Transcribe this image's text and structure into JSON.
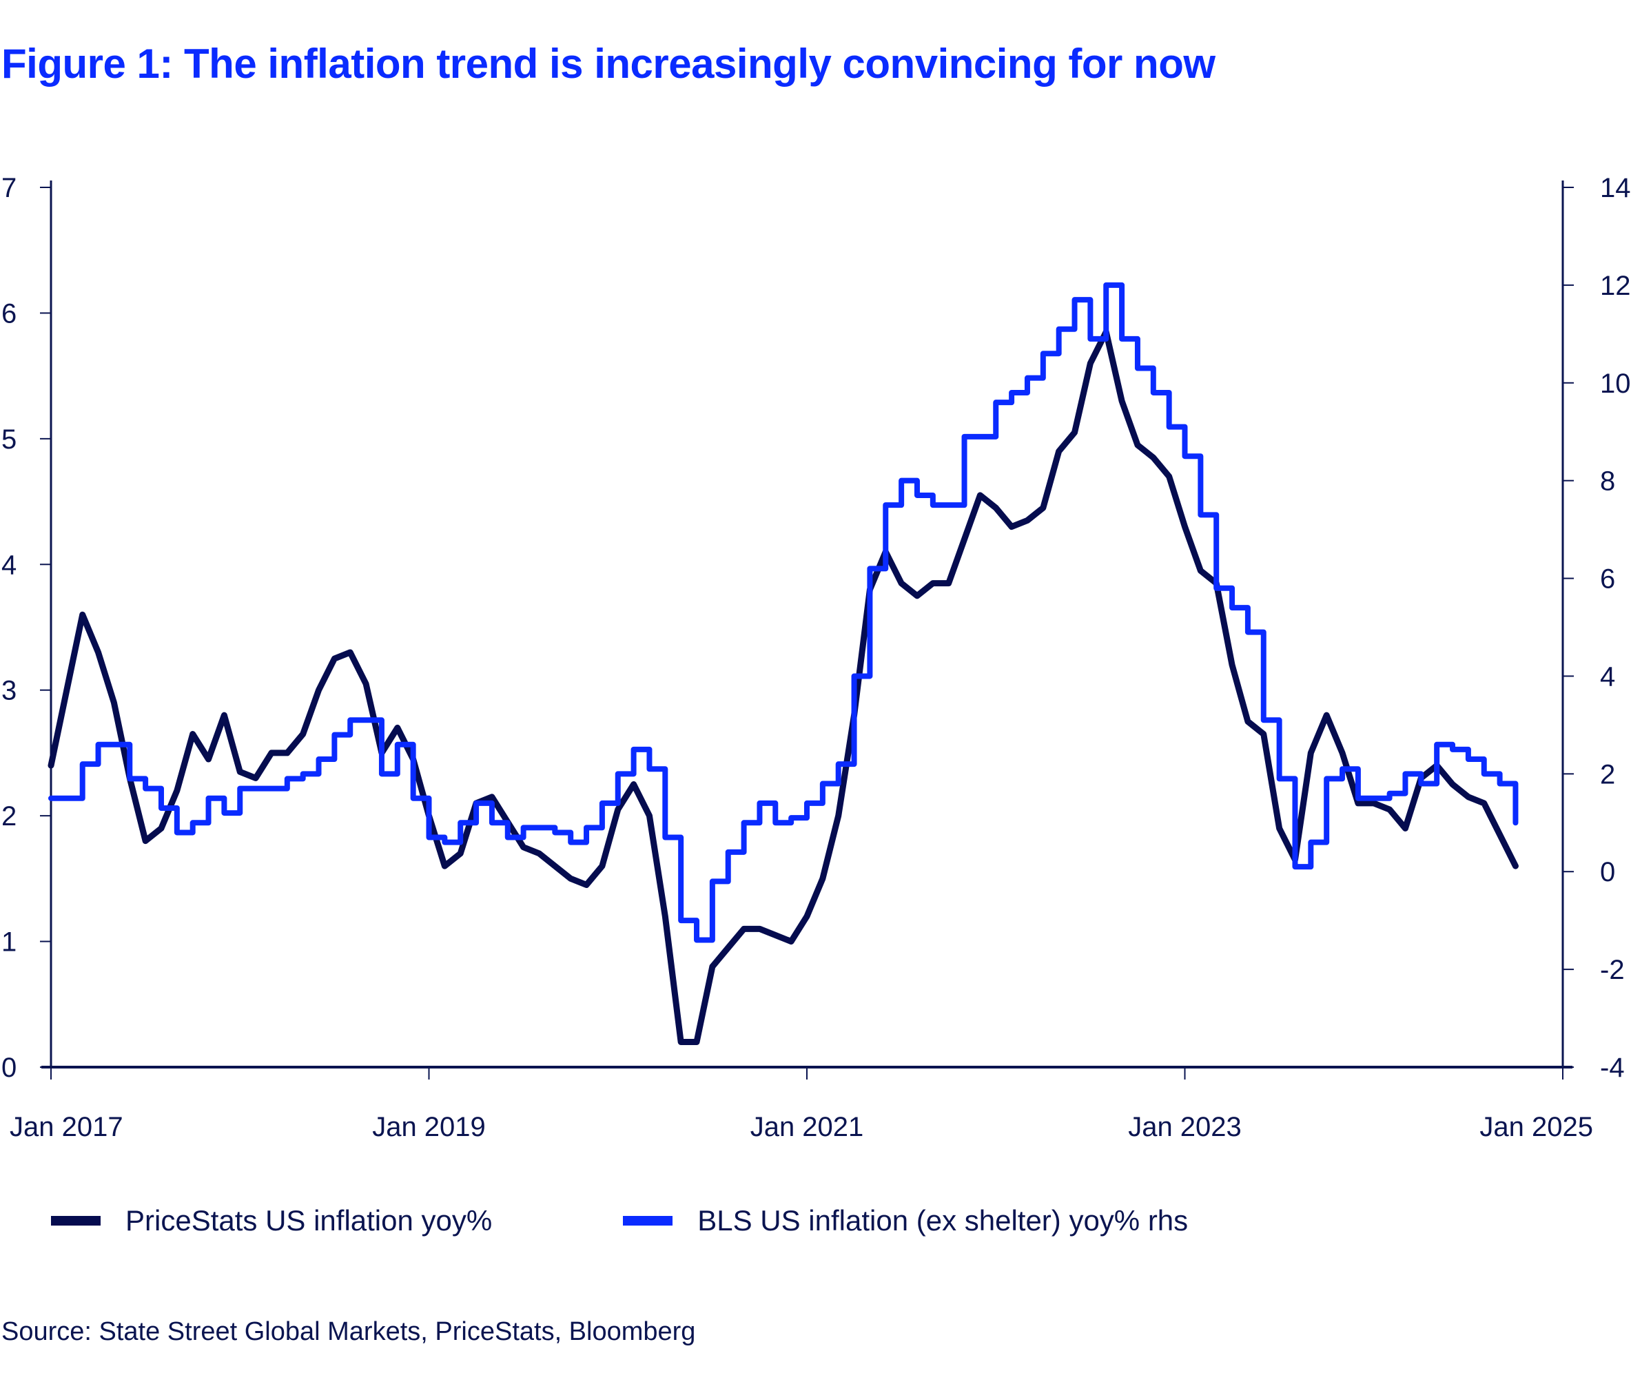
{
  "title": "Figure 1: The inflation trend is increasingly convincing for now",
  "source": "Source: State Street Global Markets, PriceStats, Bloomberg",
  "colors": {
    "pricestats": "#050c4f",
    "bls": "#0a2bff",
    "axis": "#0a1450"
  },
  "chart_data": {
    "type": "line",
    "title": "Figure 1: The inflation trend is increasingly convincing for now",
    "xlabel": "",
    "ylabel_left": "",
    "ylabel_right": "",
    "x_start": "2017-01",
    "x_frequency": "monthly",
    "xlim": [
      "2017-01",
      "2025-01"
    ],
    "x_ticks": [
      "Jan 2017",
      "Jan 2019",
      "Jan 2021",
      "Jan 2023",
      "Jan 2025"
    ],
    "ylim_left": [
      0,
      7
    ],
    "y_ticks_left": [
      "0",
      "1",
      "2",
      "3",
      "4",
      "5",
      "6",
      "7"
    ],
    "ylim_right": [
      -4,
      14
    ],
    "y_ticks_right": [
      "-4",
      "-2",
      "0",
      "2",
      "4",
      "6",
      "8",
      "10",
      "12",
      "14"
    ],
    "grid": false,
    "legend_position": "bottom",
    "series": [
      {
        "name": "PriceStats US inflation yoy%",
        "axis": "left",
        "style": "line",
        "values": [
          2.4,
          3.0,
          3.6,
          3.3,
          2.9,
          2.3,
          1.8,
          1.9,
          2.2,
          2.65,
          2.45,
          2.8,
          2.35,
          2.3,
          2.5,
          2.5,
          2.65,
          3.0,
          3.25,
          3.3,
          3.05,
          2.5,
          2.7,
          2.45,
          2.0,
          1.6,
          1.7,
          2.1,
          2.15,
          1.95,
          1.75,
          1.7,
          1.6,
          1.5,
          1.45,
          1.6,
          2.05,
          2.25,
          2.0,
          1.2,
          0.2,
          0.2,
          0.8,
          0.95,
          1.1,
          1.1,
          1.05,
          1.0,
          1.2,
          1.5,
          2.0,
          2.8,
          3.8,
          4.1,
          3.85,
          3.75,
          3.85,
          3.85,
          4.2,
          4.55,
          4.45,
          4.3,
          4.35,
          4.45,
          4.9,
          5.05,
          5.6,
          5.85,
          5.3,
          4.95,
          4.85,
          4.7,
          4.3,
          3.95,
          3.85,
          3.2,
          2.75,
          2.65,
          1.9,
          1.65,
          2.5,
          2.8,
          2.5,
          2.1,
          2.1,
          2.05,
          1.9,
          2.3,
          2.4,
          2.25,
          2.15,
          2.1,
          1.85,
          1.6
        ]
      },
      {
        "name": "BLS US inflation (ex shelter) yoy% rhs",
        "axis": "right",
        "style": "step",
        "values": [
          1.5,
          1.5,
          2.2,
          2.6,
          2.6,
          1.9,
          1.7,
          1.3,
          0.8,
          1.0,
          1.5,
          1.2,
          1.7,
          1.7,
          1.7,
          1.9,
          2.0,
          2.3,
          2.8,
          3.1,
          3.1,
          2.0,
          2.6,
          1.5,
          0.7,
          0.6,
          1.0,
          1.4,
          1.0,
          0.7,
          0.9,
          0.9,
          0.8,
          0.6,
          0.9,
          1.4,
          2.0,
          2.5,
          2.1,
          0.7,
          -1.0,
          -1.4,
          -0.2,
          0.4,
          1.0,
          1.4,
          1.0,
          1.1,
          1.4,
          1.8,
          2.2,
          4.0,
          6.2,
          7.5,
          8.0,
          7.7,
          7.5,
          7.5,
          8.9,
          8.9,
          9.6,
          9.8,
          10.1,
          10.6,
          11.1,
          11.7,
          10.9,
          12.0,
          10.9,
          10.3,
          9.8,
          9.1,
          8.5,
          7.3,
          5.8,
          5.4,
          4.9,
          3.1,
          1.9,
          0.1,
          0.6,
          1.9,
          2.1,
          1.5,
          1.5,
          1.6,
          2.0,
          1.8,
          2.6,
          2.5,
          2.3,
          2.0,
          1.8,
          1.0
        ]
      }
    ]
  }
}
